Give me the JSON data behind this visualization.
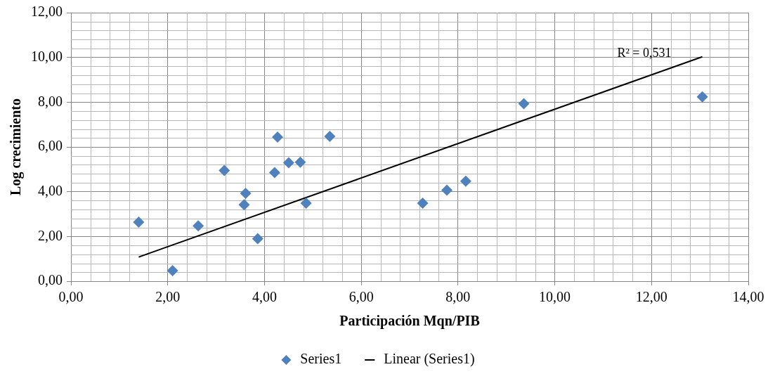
{
  "chart_data": {
    "type": "scatter",
    "xlabel": "Participación Mqn/PIB",
    "ylabel": "Log crecimiento",
    "series": [
      {
        "name": "Series1",
        "color": "#4f81bd",
        "marker": "diamond",
        "x": [
          1.4,
          2.1,
          2.63,
          3.17,
          3.58,
          3.61,
          3.86,
          4.21,
          4.27,
          4.5,
          4.74,
          4.86,
          5.35,
          7.27,
          7.77,
          8.16,
          9.36,
          13.05
        ],
        "values": [
          2.64,
          0.47,
          2.47,
          4.95,
          3.42,
          3.93,
          1.9,
          4.85,
          6.44,
          5.29,
          5.32,
          3.49,
          6.47,
          3.49,
          4.07,
          4.47,
          7.93,
          8.24
        ]
      },
      {
        "name": "Linear (Series1)",
        "type": "line",
        "color": "#000000",
        "marker": "none",
        "line_style": "solid",
        "x": [
          1.4,
          13.05
        ],
        "values": [
          1.08,
          10.03
        ]
      }
    ],
    "xlim": [
      0,
      14
    ],
    "ylim": [
      0,
      12
    ],
    "xticks": [
      {
        "value": 0,
        "label": "0,00"
      },
      {
        "value": 2,
        "label": "2,00"
      },
      {
        "value": 4,
        "label": "4,00"
      },
      {
        "value": 6,
        "label": "6,00"
      },
      {
        "value": 8,
        "label": "8,00"
      },
      {
        "value": 10,
        "label": "10,00"
      },
      {
        "value": 12,
        "label": "12,00"
      },
      {
        "value": 14,
        "label": "14,00"
      }
    ],
    "yticks": [
      {
        "value": 0,
        "label": "0,00"
      },
      {
        "value": 2,
        "label": "2,00"
      },
      {
        "value": 4,
        "label": "4,00"
      },
      {
        "value": 6,
        "label": "6,00"
      },
      {
        "value": 8,
        "label": "8,00"
      },
      {
        "value": 10,
        "label": "10,00"
      },
      {
        "value": 12,
        "label": "12,00"
      }
    ],
    "annotations": [
      "R² = 0,531"
    ],
    "grid": true,
    "legend": "bottom"
  }
}
